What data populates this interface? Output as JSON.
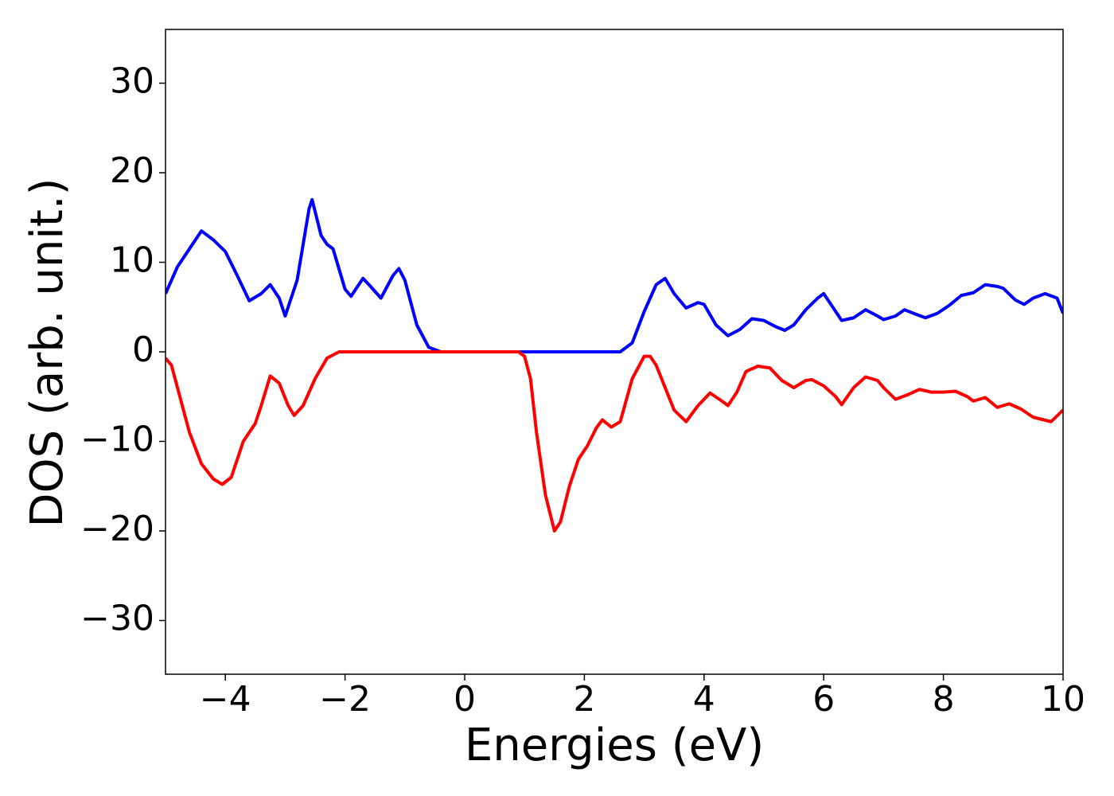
{
  "chart_data": {
    "type": "line",
    "x_label": "Energies (eV)",
    "y_label": "DOS (arb. unit.)",
    "xlim": [
      -5,
      10
    ],
    "ylim": [
      -36,
      36
    ],
    "xticks": [
      {
        "value": -4,
        "label": "−4"
      },
      {
        "value": -2,
        "label": "−2"
      },
      0,
      2,
      4,
      6,
      8,
      10
    ],
    "yticks": [
      {
        "value": -30,
        "label": "−30"
      },
      {
        "value": -20,
        "label": "−20"
      },
      {
        "value": -10,
        "label": "−10"
      },
      0,
      10,
      20,
      30
    ],
    "grid": false,
    "series": [
      {
        "color": "#0000ff",
        "x": [
          -5,
          -4.8,
          -4.6,
          -4.4,
          -4.2,
          -4.0,
          -3.8,
          -3.6,
          -3.4,
          -3.25,
          -3.1,
          -3.0,
          -2.8,
          -2.6,
          -2.55,
          -2.4,
          -2.3,
          -2.2,
          -2.0,
          -1.9,
          -1.7,
          -1.6,
          -1.4,
          -1.2,
          -1.1,
          -1.0,
          -0.8,
          -0.6,
          -0.4,
          0,
          1,
          2,
          2.6,
          2.8,
          3.0,
          3.2,
          3.35,
          3.5,
          3.7,
          3.9,
          4.0,
          4.2,
          4.4,
          4.6,
          4.8,
          5.0,
          5.2,
          5.35,
          5.5,
          5.7,
          5.9,
          6.0,
          6.2,
          6.3,
          6.5,
          6.7,
          6.9,
          7.0,
          7.2,
          7.35,
          7.5,
          7.7,
          7.9,
          8.1,
          8.3,
          8.5,
          8.7,
          8.9,
          9.0,
          9.2,
          9.35,
          9.5,
          9.7,
          9.9,
          10.0
        ],
        "values": [
          6.5,
          9.5,
          11.5,
          13.5,
          12.5,
          11.2,
          8.5,
          5.7,
          6.5,
          7.5,
          6,
          4,
          8,
          16,
          17,
          13,
          12,
          11.5,
          7,
          6.2,
          8.2,
          7.5,
          6,
          8.5,
          9.3,
          8,
          3,
          0.5,
          0,
          0,
          0,
          0,
          0,
          1,
          4.5,
          7.5,
          8.2,
          6.5,
          4.9,
          5.5,
          5.3,
          3,
          1.8,
          2.5,
          3.7,
          3.5,
          2.8,
          2.4,
          3,
          4.7,
          6,
          6.5,
          4.5,
          3.5,
          3.8,
          4.7,
          4,
          3.6,
          4,
          4.7,
          4.3,
          3.8,
          4.3,
          5.2,
          6.3,
          6.6,
          7.5,
          7.3,
          7.1,
          5.8,
          5.3,
          6,
          6.5,
          6,
          4.3
        ]
      },
      {
        "color": "#ff0000",
        "x": [
          -5,
          -4.9,
          -4.8,
          -4.6,
          -4.4,
          -4.2,
          -4.05,
          -3.9,
          -3.7,
          -3.5,
          -3.4,
          -3.25,
          -3.1,
          -2.95,
          -2.85,
          -2.7,
          -2.5,
          -2.3,
          -2.1,
          0,
          0.9,
          1.0,
          1.1,
          1.2,
          1.35,
          1.5,
          1.6,
          1.75,
          1.9,
          2.05,
          2.2,
          2.3,
          2.45,
          2.6,
          2.8,
          3.0,
          3.1,
          3.2,
          3.35,
          3.5,
          3.7,
          3.9,
          4.1,
          4.3,
          4.4,
          4.55,
          4.7,
          4.9,
          5.1,
          5.3,
          5.5,
          5.7,
          5.8,
          6.0,
          6.2,
          6.3,
          6.5,
          6.7,
          6.9,
          7.0,
          7.2,
          7.4,
          7.6,
          7.8,
          8.0,
          8.2,
          8.4,
          8.5,
          8.7,
          8.9,
          9.1,
          9.3,
          9.5,
          9.8,
          10
        ],
        "values": [
          -0.7,
          -1.5,
          -4,
          -9,
          -12.5,
          -14.2,
          -14.8,
          -14,
          -10,
          -8,
          -6,
          -2.7,
          -3.5,
          -6,
          -7.1,
          -6,
          -3,
          -0.7,
          0,
          0,
          0,
          -0.5,
          -3,
          -9,
          -16,
          -20,
          -19,
          -15,
          -12,
          -10.5,
          -8.5,
          -7.6,
          -8.4,
          -7.8,
          -3,
          -0.5,
          -0.5,
          -1.5,
          -4,
          -6.5,
          -7.8,
          -6,
          -4.6,
          -5.5,
          -6,
          -4.5,
          -2.2,
          -1.6,
          -1.8,
          -3.2,
          -4,
          -3.2,
          -3.1,
          -3.8,
          -5,
          -5.9,
          -4,
          -2.8,
          -3.2,
          -4,
          -5.3,
          -4.8,
          -4.2,
          -4.5,
          -4.5,
          -4.4,
          -5,
          -5.5,
          -5.1,
          -6.2,
          -5.8,
          -6.4,
          -7.3,
          -7.8,
          -6.5
        ]
      }
    ]
  }
}
